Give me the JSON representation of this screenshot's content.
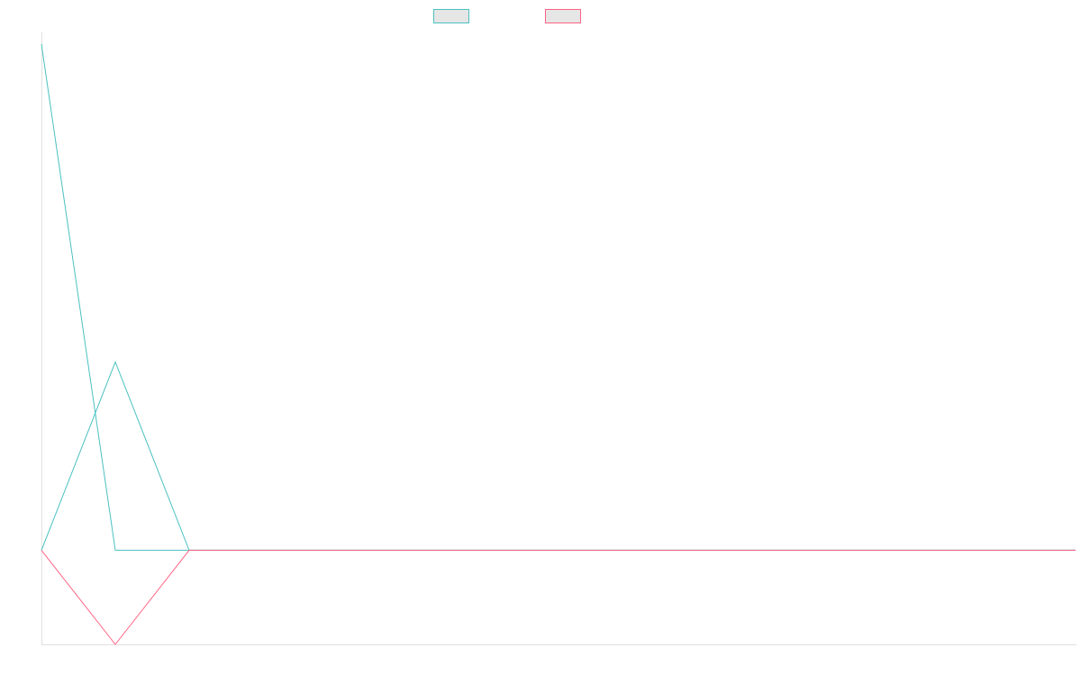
{
  "chart_data": {
    "type": "line",
    "title": "",
    "xlabel": "",
    "ylabel": "",
    "x": [
      0,
      1,
      2,
      3,
      4,
      5,
      6,
      7,
      8,
      9,
      10,
      11,
      12,
      13,
      14
    ],
    "ylim": [
      -2,
      11
    ],
    "grid": false,
    "legend_position": "top",
    "series": [
      {
        "name": "",
        "color": "#4bc0c0",
        "values": [
          10.75,
          0,
          0,
          0,
          0,
          0,
          0,
          0,
          0,
          0,
          0,
          0,
          0,
          0,
          0
        ]
      },
      {
        "name": "",
        "color": "#4bc0c0",
        "values": [
          0,
          4,
          0,
          0,
          0,
          0,
          0,
          0,
          0,
          0,
          0,
          0,
          0,
          0,
          0
        ]
      },
      {
        "name": "",
        "color": "#ff6384",
        "values": [
          0,
          -2,
          0,
          0,
          0,
          0,
          0,
          0,
          0,
          0,
          0,
          0,
          0,
          0,
          0
        ]
      }
    ],
    "legend": [
      {
        "name": "",
        "color": "#4bc0c0"
      },
      {
        "name": "",
        "color": "#ff6384"
      }
    ]
  }
}
